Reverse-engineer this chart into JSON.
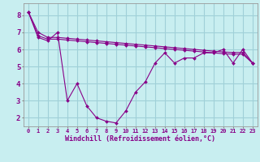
{
  "xlabel": "Windchill (Refroidissement éolien,°C)",
  "background_color": "#c8eef0",
  "grid_color": "#a0d0d8",
  "line_color": "#880088",
  "xlim": [
    -0.5,
    23.5
  ],
  "ylim": [
    1.5,
    8.7
  ],
  "yticks": [
    2,
    3,
    4,
    5,
    6,
    7,
    8
  ],
  "xticks": [
    0,
    1,
    2,
    3,
    4,
    5,
    6,
    7,
    8,
    9,
    10,
    11,
    12,
    13,
    14,
    15,
    16,
    17,
    18,
    19,
    20,
    21,
    22,
    23
  ],
  "line1_x": [
    0,
    1,
    2,
    3,
    4,
    5,
    6,
    7,
    8,
    9,
    10,
    11,
    12,
    13,
    14,
    15,
    16,
    17,
    18,
    19,
    20,
    21,
    22,
    23
  ],
  "line1_y": [
    8.2,
    6.7,
    6.5,
    7.0,
    3.0,
    4.0,
    2.7,
    2.0,
    1.8,
    1.7,
    2.4,
    3.5,
    4.1,
    5.2,
    5.8,
    5.2,
    5.5,
    5.5,
    5.8,
    5.8,
    6.0,
    5.2,
    6.0,
    5.2
  ],
  "line2_x": [
    0,
    1,
    2,
    3,
    4,
    5,
    6,
    7,
    8,
    9,
    10,
    11,
    12,
    13,
    14,
    15,
    16,
    17,
    18,
    19,
    20,
    21,
    22,
    23
  ],
  "line2_y": [
    8.2,
    6.8,
    6.6,
    6.6,
    6.55,
    6.5,
    6.45,
    6.4,
    6.35,
    6.3,
    6.25,
    6.2,
    6.15,
    6.1,
    6.05,
    6.0,
    5.95,
    5.9,
    5.85,
    5.8,
    5.75,
    5.72,
    5.72,
    5.2
  ],
  "line3_x": [
    0,
    1,
    2,
    3,
    4,
    5,
    6,
    7,
    8,
    9,
    10,
    11,
    12,
    13,
    14,
    15,
    16,
    17,
    18,
    19,
    20,
    21,
    22,
    23
  ],
  "line3_y": [
    8.2,
    7.0,
    6.7,
    6.7,
    6.65,
    6.6,
    6.55,
    6.5,
    6.45,
    6.4,
    6.35,
    6.3,
    6.25,
    6.2,
    6.15,
    6.1,
    6.05,
    6.0,
    5.95,
    5.9,
    5.85,
    5.82,
    5.82,
    5.2
  ],
  "xlabel_fontsize": 6.0,
  "tick_fontsize_x": 5.0,
  "tick_fontsize_y": 6.5
}
